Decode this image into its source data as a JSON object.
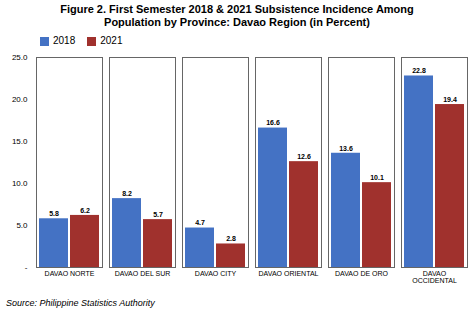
{
  "chart_data": {
    "type": "bar",
    "title": "Figure 2. First Semester 2018 & 2021 Subsistence Incidence Among\nPopulation by Province: Davao Region (in Percent)",
    "categories": [
      "DAVAO NORTE",
      "DAVAO DEL SUR",
      "DAVAO CITY",
      "DAVAO ORIENTAL",
      "DAVAO DE ORO",
      "DAVAO\nOCCIDENTAL"
    ],
    "series": [
      {
        "name": "2018",
        "color": "#4472C4",
        "values": [
          5.8,
          8.2,
          4.7,
          16.6,
          13.6,
          22.8
        ]
      },
      {
        "name": "2021",
        "color": "#A0312D",
        "values": [
          6.2,
          5.7,
          2.8,
          12.6,
          10.1,
          19.4
        ]
      }
    ],
    "ylim": [
      0,
      25.0
    ],
    "yticks": [
      {
        "value": 0,
        "label": "-"
      },
      {
        "value": 5.0,
        "label": "5.0"
      },
      {
        "value": 10.0,
        "label": "10.0"
      },
      {
        "value": 15.0,
        "label": "15.0"
      },
      {
        "value": 20.0,
        "label": "20.0"
      },
      {
        "value": 25.0,
        "label": "25.0"
      }
    ],
    "data_labels": true,
    "legend": "upper left",
    "grid": false,
    "source": "Source: Philippine Statistics Authority"
  }
}
